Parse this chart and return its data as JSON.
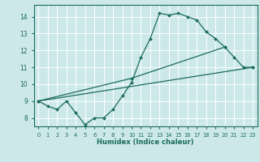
{
  "xlabel": "Humidex (Indice chaleur)",
  "xlim": [
    -0.5,
    23.5
  ],
  "ylim": [
    7.5,
    14.7
  ],
  "yticks": [
    8,
    9,
    10,
    11,
    12,
    13,
    14
  ],
  "xticks": [
    0,
    1,
    2,
    3,
    4,
    5,
    6,
    7,
    8,
    9,
    10,
    11,
    12,
    13,
    14,
    15,
    16,
    17,
    18,
    19,
    20,
    21,
    22,
    23
  ],
  "bg_color": "#cce8e8",
  "grid_color": "#b0d8d8",
  "line_color": "#1a6b5e",
  "lines": [
    {
      "x": [
        0,
        1,
        2,
        3,
        4,
        5,
        6,
        7,
        8,
        9,
        10,
        11,
        12,
        13,
        14,
        15,
        16,
        17,
        18,
        19,
        20,
        21,
        22,
        23
      ],
      "y": [
        9.0,
        8.7,
        8.5,
        9.0,
        8.3,
        7.6,
        8.0,
        8.0,
        8.5,
        9.3,
        10.1,
        11.6,
        12.7,
        14.2,
        14.1,
        14.2,
        14.0,
        13.8,
        13.1,
        12.7,
        12.2,
        11.6,
        11.0,
        11.0
      ],
      "marker": true
    },
    {
      "x": [
        0,
        10,
        20
      ],
      "y": [
        9.0,
        10.35,
        12.2
      ],
      "marker": true
    },
    {
      "x": [
        0,
        23
      ],
      "y": [
        9.0,
        11.0
      ],
      "marker": true
    }
  ]
}
